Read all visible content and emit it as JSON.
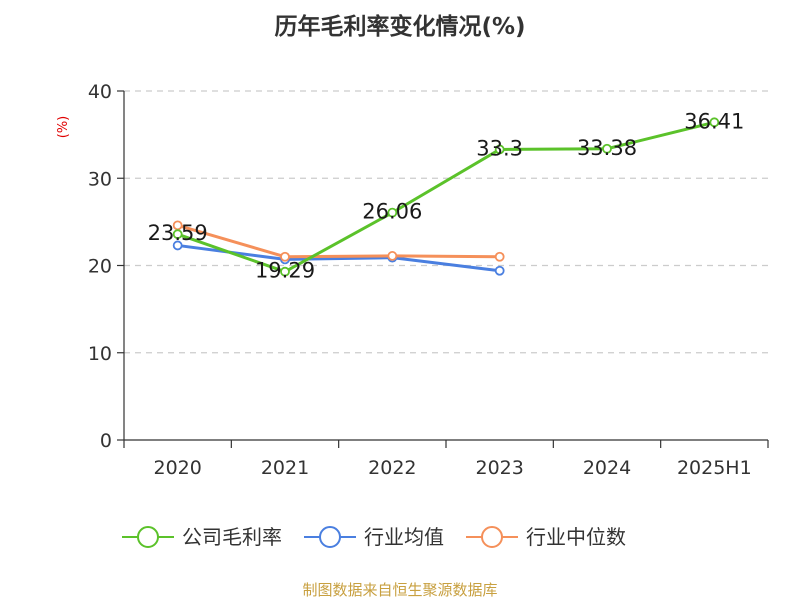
{
  "chart_data": {
    "type": "line",
    "title": "历年毛利率变化情况(%)",
    "unit_label": "(%)",
    "categories": [
      "2020",
      "2021",
      "2022",
      "2023",
      "2024",
      "2025H1"
    ],
    "ylim": [
      0,
      40
    ],
    "yticks": [
      0,
      10,
      20,
      30,
      40
    ],
    "grid": true,
    "legend_position": "bottom",
    "series": [
      {
        "name": "公司毛利率",
        "color": "#5bc22a",
        "values": [
          23.59,
          19.29,
          26.06,
          33.3,
          33.38,
          36.41
        ],
        "labels": [
          "23.59",
          "19.29",
          "26.06",
          "33.3",
          "33.38",
          "36.41"
        ]
      },
      {
        "name": "行业均值",
        "color": "#4a7fe0",
        "values": [
          22.3,
          20.7,
          20.9,
          19.4,
          null,
          null
        ]
      },
      {
        "name": "行业中位数",
        "color": "#f5905a",
        "values": [
          24.6,
          21.0,
          21.1,
          21.0,
          null,
          null
        ]
      }
    ],
    "source": "制图数据来自恒生聚源数据库"
  }
}
